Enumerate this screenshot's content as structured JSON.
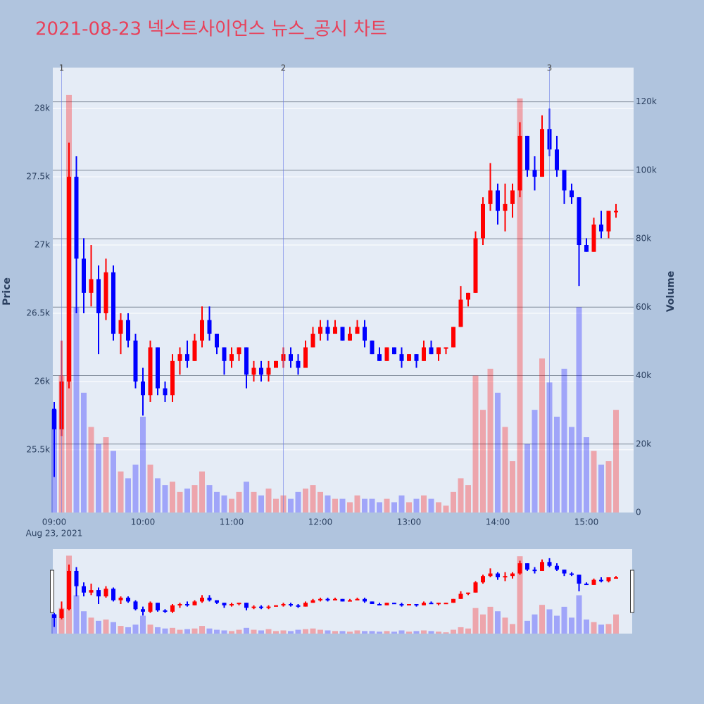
{
  "chart_data": {
    "type": "candlestick",
    "title": "2021-08-23 넥스트사이언스 뉴스_공시 차트",
    "y_title": "Price",
    "y2_title": "Volume",
    "date_label": "Aug 23, 2021",
    "increasing_color": "#ff0000",
    "decreasing_color": "#0000ff",
    "event_color": "#6a7de8",
    "xlim": [
      "09:00",
      "15:30"
    ],
    "xticks": [
      "09:00",
      "10:00",
      "11:00",
      "12:00",
      "13:00",
      "14:00",
      "15:00"
    ],
    "ylim": [
      25040,
      28300
    ],
    "yticks": [
      {
        "value": 25500,
        "label": "25.5k"
      },
      {
        "value": 26000,
        "label": "26k"
      },
      {
        "value": 26500,
        "label": "26.5k"
      },
      {
        "value": 27000,
        "label": "27k"
      },
      {
        "value": 27500,
        "label": "27.5k"
      },
      {
        "value": 28000,
        "label": "28k"
      }
    ],
    "y2lim": [
      0,
      130000
    ],
    "y2ticks": [
      0,
      {
        "value": 20000,
        "label": "20k"
      },
      {
        "value": 40000,
        "label": "40k"
      },
      {
        "value": 60000,
        "label": "60k"
      },
      {
        "value": 80000,
        "label": "80k"
      },
      {
        "value": 100000,
        "label": "100k"
      },
      {
        "value": 120000,
        "label": "120k"
      }
    ],
    "grid": true,
    "range_slider": true,
    "events": [
      {
        "x": "09:05",
        "label": "1"
      },
      {
        "x": "11:35",
        "label": "2"
      },
      {
        "x": "14:35",
        "label": "3"
      }
    ],
    "x": [
      "09:00",
      "09:05",
      "09:10",
      "09:15",
      "09:20",
      "09:25",
      "09:30",
      "09:35",
      "09:40",
      "09:45",
      "09:50",
      "09:55",
      "10:00",
      "10:05",
      "10:10",
      "10:15",
      "10:20",
      "10:25",
      "10:30",
      "10:35",
      "10:40",
      "10:45",
      "10:50",
      "10:55",
      "11:00",
      "11:05",
      "11:10",
      "11:15",
      "11:20",
      "11:25",
      "11:30",
      "11:35",
      "11:40",
      "11:45",
      "11:50",
      "11:55",
      "12:00",
      "12:05",
      "12:10",
      "12:15",
      "12:20",
      "12:25",
      "12:30",
      "12:35",
      "12:40",
      "12:45",
      "12:50",
      "12:55",
      "13:00",
      "13:05",
      "13:10",
      "13:15",
      "13:20",
      "13:25",
      "13:30",
      "13:35",
      "13:40",
      "13:45",
      "13:50",
      "13:55",
      "14:00",
      "14:05",
      "14:10",
      "14:15",
      "14:20",
      "14:25",
      "14:30",
      "14:35",
      "14:40",
      "14:45",
      "14:50",
      "14:55",
      "15:00",
      "15:05",
      "15:10",
      "15:15",
      "15:20"
    ],
    "open": [
      25800,
      25650,
      26000,
      27500,
      26900,
      26650,
      26750,
      26500,
      26800,
      26350,
      26450,
      26300,
      26000,
      25900,
      26250,
      25950,
      25900,
      26150,
      26200,
      26150,
      26300,
      26450,
      26350,
      26250,
      26150,
      26200,
      26250,
      26050,
      26100,
      26050,
      26100,
      26150,
      26200,
      26150,
      26100,
      26250,
      26350,
      26400,
      26350,
      26400,
      26300,
      26350,
      26400,
      26300,
      26200,
      26150,
      26250,
      26200,
      26150,
      26200,
      26150,
      26250,
      26200,
      26250,
      26250,
      26400,
      26600,
      26650,
      27050,
      27300,
      27400,
      27250,
      27300,
      27400,
      27800,
      27550,
      27500,
      27850,
      27700,
      27550,
      27400,
      27350,
      27000,
      26950,
      27150,
      27100,
      27250
    ],
    "high": [
      25850,
      26300,
      27750,
      27650,
      27050,
      27000,
      26850,
      26900,
      26850,
      26500,
      26500,
      26350,
      26100,
      26300,
      26250,
      26000,
      26200,
      26250,
      26300,
      26350,
      26550,
      26550,
      26350,
      26250,
      26250,
      26250,
      26250,
      26150,
      26150,
      26150,
      26150,
      26250,
      26250,
      26200,
      26300,
      26400,
      26450,
      26450,
      26450,
      26400,
      26400,
      26450,
      26450,
      26300,
      26250,
      26250,
      26250,
      26250,
      26200,
      26200,
      26300,
      26300,
      26250,
      26250,
      26400,
      26700,
      26650,
      27100,
      27350,
      27600,
      27450,
      27450,
      27450,
      27900,
      27800,
      27650,
      27950,
      28000,
      27800,
      27550,
      27450,
      27350,
      27050,
      27200,
      27250,
      27250,
      27300
    ],
    "low": [
      25300,
      25600,
      25950,
      26500,
      26500,
      26550,
      26200,
      26450,
      26300,
      26200,
      26250,
      25950,
      25750,
      25850,
      25900,
      25850,
      25850,
      26050,
      26100,
      26150,
      26250,
      26300,
      26200,
      26050,
      26100,
      26150,
      25950,
      26000,
      26000,
      26000,
      26100,
      26100,
      26100,
      26050,
      26100,
      26250,
      26300,
      26300,
      26350,
      26300,
      26300,
      26350,
      26250,
      26200,
      26150,
      26150,
      26200,
      26100,
      26150,
      26100,
      26150,
      26200,
      26150,
      26200,
      26250,
      26400,
      26550,
      26650,
      27000,
      27250,
      27150,
      27100,
      27200,
      27350,
      27500,
      27400,
      27500,
      27650,
      27500,
      27300,
      27300,
      26700,
      26950,
      26950,
      27050,
      27050,
      27200
    ],
    "close": [
      25650,
      26000,
      27500,
      26900,
      26650,
      26750,
      26500,
      26800,
      26350,
      26450,
      26300,
      26000,
      25900,
      26250,
      25950,
      25900,
      26150,
      26200,
      26150,
      26300,
      26450,
      26350,
      26250,
      26150,
      26200,
      26250,
      26050,
      26100,
      26050,
      26100,
      26150,
      26200,
      26150,
      26100,
      26250,
      26350,
      26400,
      26350,
      26400,
      26300,
      26350,
      26400,
      26300,
      26200,
      26150,
      26250,
      26200,
      26150,
      26200,
      26150,
      26250,
      26200,
      26250,
      26250,
      26400,
      26600,
      26650,
      27050,
      27300,
      27400,
      27250,
      27300,
      27400,
      27800,
      27550,
      27500,
      27850,
      27700,
      27550,
      27400,
      27350,
      27000,
      26950,
      27150,
      27100,
      27250,
      27250
    ],
    "volume": [
      30000,
      40000,
      122000,
      60000,
      35000,
      25000,
      20000,
      22000,
      18000,
      12000,
      10000,
      14000,
      28000,
      14000,
      10000,
      8000,
      9000,
      6000,
      7000,
      8000,
      12000,
      8000,
      6000,
      5000,
      4000,
      6000,
      9000,
      6000,
      5000,
      7000,
      4000,
      5000,
      4000,
      6000,
      7000,
      8000,
      6000,
      5000,
      4000,
      4000,
      3000,
      5000,
      4000,
      4000,
      3000,
      4000,
      3000,
      5000,
      3000,
      4000,
      5000,
      4000,
      3000,
      2000,
      6000,
      10000,
      8000,
      40000,
      30000,
      42000,
      35000,
      25000,
      15000,
      121000,
      20000,
      30000,
      45000,
      38000,
      28000,
      42000,
      25000,
      60000,
      22000,
      18000,
      14000,
      15000,
      30000
    ]
  }
}
